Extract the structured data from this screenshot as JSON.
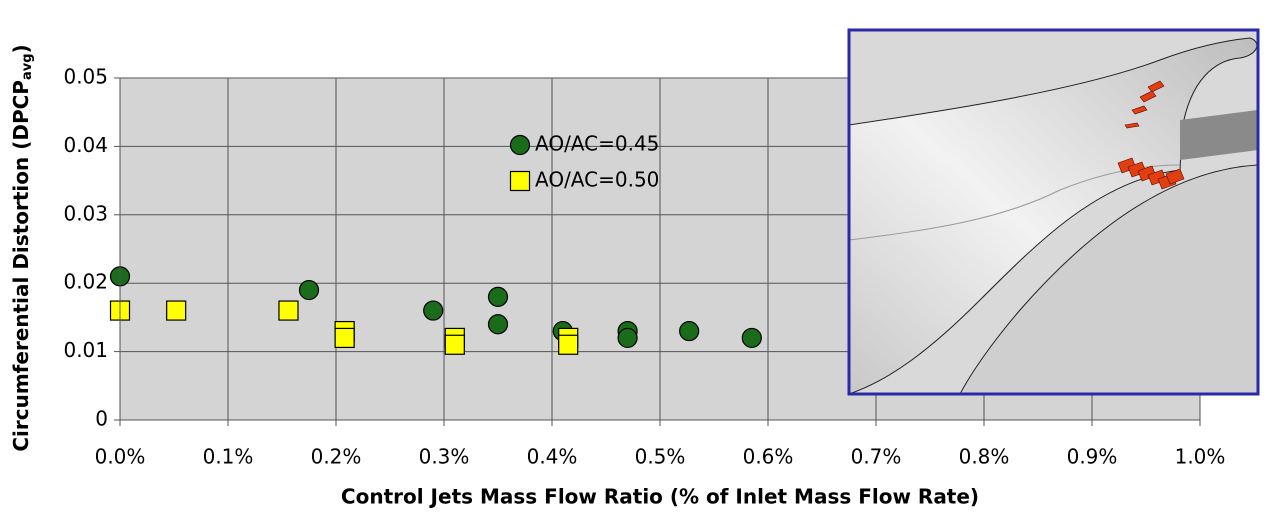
{
  "chart_data": {
    "type": "scatter",
    "x_label": "Control Jets Mass Flow Ratio (% of Inlet Mass Flow Rate)",
    "y_label": "Circumferential Distortion (DPCP",
    "y_label_sub": "avg",
    "y_label_end": ")",
    "xlim": [
      0,
      1.0
    ],
    "ylim": [
      0,
      0.05
    ],
    "xticks": [
      {
        "value": 0,
        "label": "0.0%"
      },
      {
        "value": 0.1,
        "label": "0.1%"
      },
      {
        "value": 0.2,
        "label": "0.2%"
      },
      {
        "value": 0.3,
        "label": "0.3%"
      },
      {
        "value": 0.4,
        "label": "0.4%"
      },
      {
        "value": 0.5,
        "label": "0.5%"
      },
      {
        "value": 0.6,
        "label": "0.6%"
      },
      {
        "value": 0.7,
        "label": "0.7%"
      },
      {
        "value": 0.8,
        "label": "0.8%"
      },
      {
        "value": 0.9,
        "label": "0.9%"
      },
      {
        "value": 1.0,
        "label": "1.0%"
      }
    ],
    "yticks": [
      0,
      0.01,
      0.02,
      0.03,
      0.04,
      0.05
    ],
    "grid": true,
    "series": [
      {
        "name": "AO/AC=0.45",
        "color": "#1a6b1a",
        "marker": "circle",
        "x": [
          0.0,
          0.175,
          0.29,
          0.35,
          0.35,
          0.41,
          0.47,
          0.47,
          0.527,
          0.585
        ],
        "values": [
          0.021,
          0.019,
          0.016,
          0.018,
          0.014,
          0.013,
          0.013,
          0.012,
          0.013,
          0.012
        ]
      },
      {
        "name": "AO/AC=0.50",
        "color": "#ffff00",
        "marker": "square",
        "x": [
          0.0,
          0.052,
          0.156,
          0.208,
          0.208,
          0.31,
          0.31,
          0.415,
          0.415
        ],
        "values": [
          0.016,
          0.016,
          0.016,
          0.013,
          0.012,
          0.012,
          0.011,
          0.012,
          0.011
        ]
      }
    ]
  }
}
